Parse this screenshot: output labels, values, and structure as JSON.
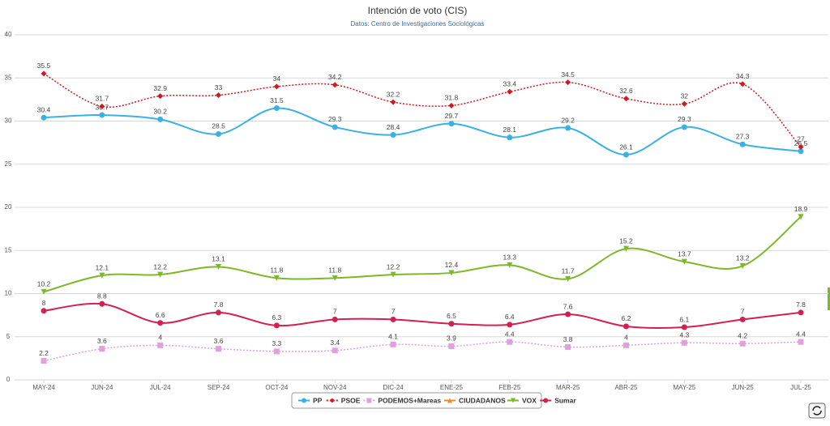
{
  "chart_data": {
    "type": "line",
    "title": "Intención de voto (CIS)",
    "subtitle": "Datos: Centro de Investigaciones Sociológicas",
    "categories": [
      "MAY-24",
      "JUN-24",
      "JUL-24",
      "SEP-24",
      "OCT-24",
      "NOV-24",
      "DIC-24",
      "ENE-25",
      "FEB-25",
      "MAR-25",
      "ABR-25",
      "MAY-25",
      "JUN-25",
      "JUL-25"
    ],
    "ylim": [
      0,
      40
    ],
    "yticks": [
      0,
      5,
      10,
      15,
      20,
      25,
      30,
      35,
      40
    ],
    "grid": true,
    "series": [
      {
        "name": "PP",
        "color": "#3bb0e3",
        "marker": "circle",
        "dash": false,
        "values": [
          30.4,
          30.7,
          30.2,
          28.5,
          31.5,
          29.3,
          28.4,
          29.7,
          28.1,
          29.2,
          26.1,
          29.3,
          27.3,
          26.5
        ]
      },
      {
        "name": "PSOE",
        "color": "#d0181f",
        "marker": "diamond",
        "dash": true,
        "values": [
          35.5,
          31.7,
          32.9,
          33,
          34,
          34.2,
          32.2,
          31.8,
          33.4,
          34.5,
          32.6,
          32,
          34.3,
          27
        ]
      },
      {
        "name": "PODEMOS+Mareas",
        "color": "#e0a0dc",
        "marker": "square",
        "dash": true,
        "values": [
          2.2,
          3.6,
          4,
          3.6,
          3.3,
          3.4,
          4.1,
          3.9,
          4.4,
          3.8,
          4,
          4.3,
          4.2,
          4.4
        ]
      },
      {
        "name": "CIUDADANOS",
        "color": "#f08c2a",
        "marker": "triangle",
        "dash": false,
        "values": [
          null,
          null,
          null,
          null,
          null,
          null,
          null,
          null,
          null,
          null,
          null,
          null,
          null,
          null
        ]
      },
      {
        "name": "VOX",
        "color": "#7cb82a",
        "marker": "triangle-down",
        "dash": false,
        "values": [
          10.2,
          12.1,
          12.2,
          13.1,
          11.8,
          11.8,
          12.2,
          12.4,
          13.3,
          11.7,
          15.2,
          13.7,
          13.2,
          18.9
        ]
      },
      {
        "name": "Sumar",
        "color": "#d4204f",
        "marker": "circle",
        "dash": false,
        "values": [
          8,
          8.8,
          6.6,
          7.8,
          6.3,
          7,
          7,
          6.5,
          6.4,
          7.6,
          6.2,
          6.1,
          7,
          7.8
        ]
      }
    ]
  }
}
